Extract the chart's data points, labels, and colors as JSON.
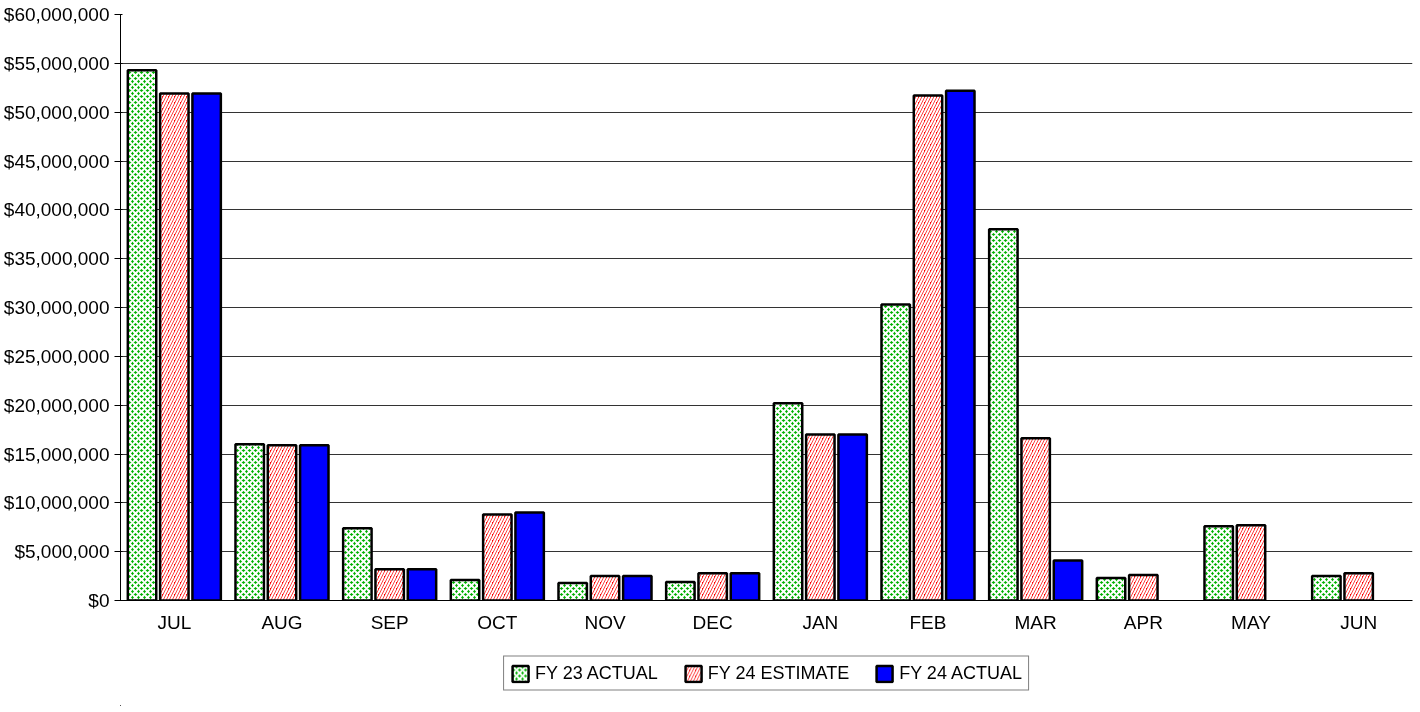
{
  "chart_data": {
    "type": "bar",
    "categories": [
      "JUL",
      "AUG",
      "SEP",
      "OCT",
      "NOV",
      "DEC",
      "JAN",
      "FEB",
      "MAR",
      "APR",
      "MAY",
      "JUN"
    ],
    "series": [
      {
        "name": "FY 23 ACTUAL",
        "color": "#00b000",
        "values": [
          54300000,
          16000000,
          7400000,
          2100000,
          1800000,
          1900000,
          20200000,
          30300000,
          38000000,
          2300000,
          7600000,
          2500000
        ]
      },
      {
        "name": "FY 24 ESTIMATE",
        "color": "#ff0000",
        "values": [
          51900000,
          15900000,
          3200000,
          8800000,
          2500000,
          2800000,
          17000000,
          51700000,
          16600000,
          2600000,
          7700000,
          2800000
        ]
      },
      {
        "name": "FY 24 ACTUAL",
        "color": "#0000ff",
        "values": [
          51900000,
          15900000,
          3200000,
          9000000,
          2500000,
          2800000,
          17000000,
          52200000,
          4100000,
          null,
          null,
          null
        ]
      }
    ],
    "ylim": [
      0,
      60000000
    ],
    "yticks": [
      {
        "value": 0,
        "label": "$0"
      },
      {
        "value": 5000000,
        "label": "$5,000,000"
      },
      {
        "value": 10000000,
        "label": "$10,000,000"
      },
      {
        "value": 15000000,
        "label": "$15,000,000"
      },
      {
        "value": 20000000,
        "label": "$20,000,000"
      },
      {
        "value": 25000000,
        "label": "$25,000,000"
      },
      {
        "value": 30000000,
        "label": "$30,000,000"
      },
      {
        "value": 35000000,
        "label": "$35,000,000"
      },
      {
        "value": 40000000,
        "label": "$40,000,000"
      },
      {
        "value": 45000000,
        "label": "$45,000,000"
      },
      {
        "value": 50000000,
        "label": "$50,000,000"
      },
      {
        "value": 55000000,
        "label": "$55,000,000"
      },
      {
        "value": 60000000,
        "label": "$60,000,000"
      }
    ],
    "grid": "y",
    "legend": "bottom"
  }
}
